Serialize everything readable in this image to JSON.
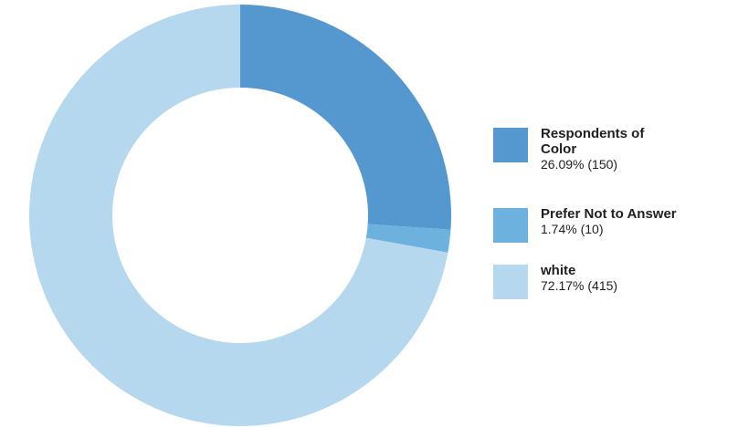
{
  "chart_data": {
    "type": "pie",
    "donut": true,
    "legend_position": "right",
    "slices": [
      {
        "label": "Respondents of Color",
        "percent": 26.09,
        "count": 150,
        "value_text": "26.09% (150)",
        "color": "#5597cf"
      },
      {
        "label": "Prefer Not to Answer",
        "percent": 1.74,
        "count": 10,
        "value_text": "1.74% (10)",
        "color": "#6db2de"
      },
      {
        "label": "white",
        "percent": 72.17,
        "count": 415,
        "value_text": "72.17% (415)",
        "color": "#b5d8ee"
      }
    ]
  }
}
